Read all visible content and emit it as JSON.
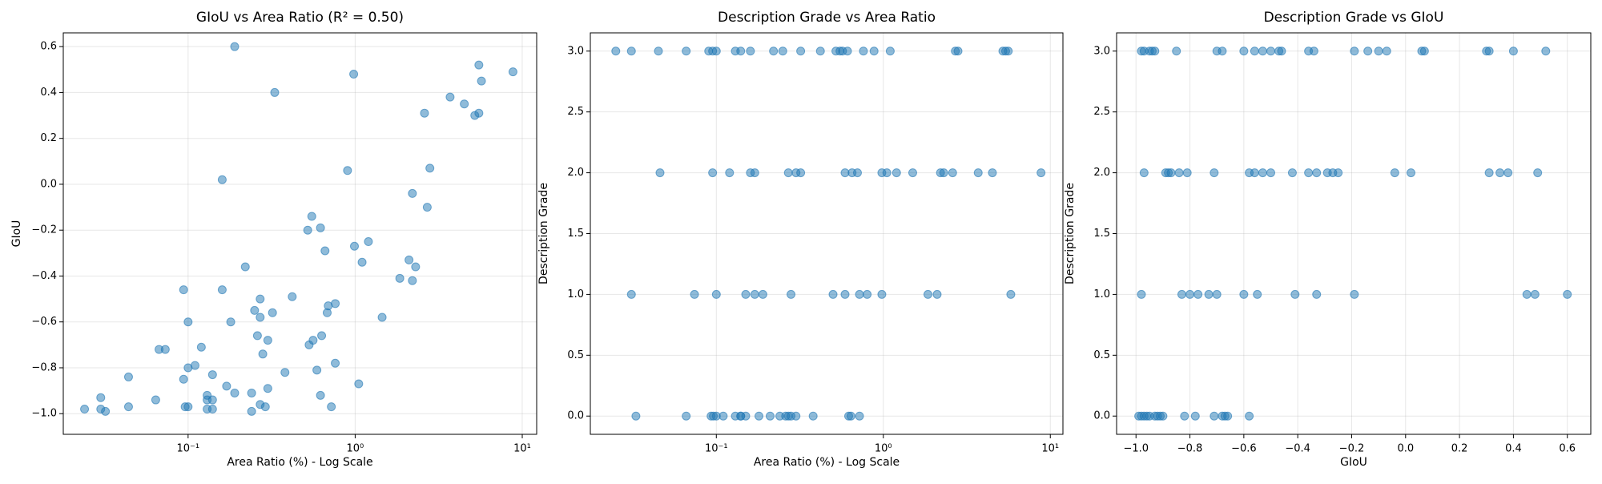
{
  "chart_data": [
    {
      "type": "scatter",
      "title": "GIoU vs Area Ratio (R² = 0.50)",
      "xlabel": "Area Ratio (%) - Log Scale",
      "ylabel": "GIoU",
      "xscale": "log",
      "grid": true,
      "color": "#1f77b4",
      "xlim": [
        0.0179,
        12.2
      ],
      "ylim": [
        -1.09,
        0.66
      ],
      "xticks": [
        {
          "value": 0.1,
          "label": "10⁻¹"
        },
        {
          "value": 1,
          "label": "10⁰"
        },
        {
          "value": 10,
          "label": "10¹"
        }
      ],
      "yticks": [
        {
          "value": -1.0,
          "label": "−1.0"
        },
        {
          "value": -0.8,
          "label": "−0.8"
        },
        {
          "value": -0.6,
          "label": "−0.6"
        },
        {
          "value": -0.4,
          "label": "−0.4"
        },
        {
          "value": -0.2,
          "label": "−0.2"
        },
        {
          "value": 0,
          "label": "0.0"
        },
        0.2,
        0.4,
        0.6
      ],
      "x": [
        0.19,
        0.33,
        0.98,
        5.5,
        5.7,
        8.8,
        3.7,
        4.5,
        5.2,
        5.5,
        2.6,
        0.9,
        2.8,
        0.16,
        2.2,
        2.7,
        0.55,
        0.52,
        0.62,
        1.2,
        0.99,
        0.66,
        2.1,
        1.1,
        2.3,
        0.22,
        1.85,
        2.2,
        0.094,
        0.16,
        0.42,
        0.27,
        0.76,
        0.69,
        0.25,
        0.68,
        0.32,
        0.27,
        1.45,
        0.1,
        0.18,
        0.63,
        0.26,
        0.3,
        0.56,
        0.53,
        0.12,
        0.067,
        0.073,
        0.28,
        0.11,
        0.1,
        0.76,
        0.38,
        0.59,
        0.14,
        0.044,
        0.094,
        0.17,
        1.05,
        0.3,
        0.19,
        0.24,
        0.13,
        0.62,
        0.03,
        0.064,
        0.13,
        0.14,
        0.096,
        0.1,
        0.044,
        0.27,
        0.29,
        0.72,
        0.024,
        0.03,
        0.032,
        0.13,
        0.14,
        0.24
      ],
      "y": [
        0.6,
        0.4,
        0.48,
        0.52,
        0.45,
        0.49,
        0.38,
        0.35,
        0.3,
        0.31,
        0.31,
        0.06,
        0.07,
        0.02,
        -0.04,
        -0.1,
        -0.14,
        -0.2,
        -0.19,
        -0.25,
        -0.27,
        -0.29,
        -0.33,
        -0.34,
        -0.36,
        -0.36,
        -0.41,
        -0.42,
        -0.46,
        -0.46,
        -0.49,
        -0.5,
        -0.52,
        -0.53,
        -0.55,
        -0.56,
        -0.56,
        -0.58,
        -0.58,
        -0.6,
        -0.6,
        -0.66,
        -0.66,
        -0.68,
        -0.68,
        -0.7,
        -0.71,
        -0.72,
        -0.72,
        -0.74,
        -0.79,
        -0.8,
        -0.78,
        -0.82,
        -0.81,
        -0.83,
        -0.84,
        -0.85,
        -0.88,
        -0.87,
        -0.89,
        -0.91,
        -0.91,
        -0.92,
        -0.92,
        -0.93,
        -0.94,
        -0.94,
        -0.94,
        -0.97,
        -0.97,
        -0.97,
        -0.96,
        -0.97,
        -0.97,
        -0.98,
        -0.98,
        -0.99,
        -0.98,
        -0.98,
        -0.99
      ]
    },
    {
      "type": "scatter",
      "title": "Description Grade vs Area Ratio",
      "xlabel": "Area Ratio (%) - Log Scale",
      "ylabel": "Description Grade",
      "xscale": "log",
      "grid": true,
      "color": "#1f77b4",
      "xlim": [
        0.0176,
        11.9
      ],
      "ylim": [
        -0.15,
        3.15
      ],
      "xticks": [
        {
          "value": 0.1,
          "label": "10⁻¹"
        },
        {
          "value": 1,
          "label": "10⁰"
        },
        {
          "value": 10,
          "label": "10¹"
        }
      ],
      "yticks": [
        {
          "value": 0,
          "label": "0.0"
        },
        0.5,
        {
          "value": 1,
          "label": "1.0"
        },
        1.5,
        {
          "value": 2,
          "label": "2.0"
        },
        2.5,
        {
          "value": 3,
          "label": "3.0"
        }
      ],
      "x": [
        0.025,
        0.031,
        0.045,
        0.066,
        0.09,
        0.095,
        0.1,
        0.13,
        0.14,
        0.16,
        0.22,
        0.25,
        0.32,
        0.42,
        0.52,
        0.55,
        0.57,
        0.61,
        0.76,
        0.88,
        1.1,
        2.7,
        2.8,
        5.2,
        5.4,
        5.6,
        0.046,
        0.095,
        0.12,
        0.16,
        0.17,
        0.27,
        0.3,
        0.32,
        0.59,
        0.65,
        0.7,
        0.98,
        1.05,
        1.2,
        1.5,
        2.2,
        2.3,
        2.6,
        3.7,
        4.5,
        8.8,
        0.031,
        0.074,
        0.1,
        0.15,
        0.17,
        0.19,
        0.28,
        0.5,
        0.59,
        0.72,
        0.8,
        0.98,
        1.85,
        2.1,
        5.8,
        0.033,
        0.066,
        0.093,
        0.096,
        0.1,
        0.11,
        0.13,
        0.14,
        0.14,
        0.15,
        0.18,
        0.21,
        0.24,
        0.26,
        0.27,
        0.28,
        0.3,
        0.38,
        0.62,
        0.64,
        0.72
      ],
      "y": [
        3,
        3,
        3,
        3,
        3,
        3,
        3,
        3,
        3,
        3,
        3,
        3,
        3,
        3,
        3,
        3,
        3,
        3,
        3,
        3,
        3,
        3,
        3,
        3,
        3,
        3,
        2,
        2,
        2,
        2,
        2,
        2,
        2,
        2,
        2,
        2,
        2,
        2,
        2,
        2,
        2,
        2,
        2,
        2,
        2,
        2,
        2,
        1,
        1,
        1,
        1,
        1,
        1,
        1,
        1,
        1,
        1,
        1,
        1,
        1,
        1,
        1,
        0,
        0,
        0,
        0,
        0,
        0,
        0,
        0,
        0,
        0,
        0,
        0,
        0,
        0,
        0,
        0,
        0,
        0,
        0,
        0,
        0
      ]
    },
    {
      "type": "scatter",
      "title": "Description Grade vs GIoU",
      "xlabel": "GIoU",
      "ylabel": "Description Grade",
      "xscale": "linear",
      "grid": true,
      "color": "#1f77b4",
      "xlim": [
        -1.072,
        0.687
      ],
      "ylim": [
        -0.15,
        3.15
      ],
      "xticks": [
        {
          "value": -1.0,
          "label": "−1.0"
        },
        {
          "value": -0.8,
          "label": "−0.8"
        },
        {
          "value": -0.6,
          "label": "−0.6"
        },
        {
          "value": -0.4,
          "label": "−0.4"
        },
        {
          "value": -0.2,
          "label": "−0.2"
        },
        {
          "value": 0,
          "label": "0.0"
        },
        0.2,
        0.4,
        0.6
      ],
      "yticks": [
        {
          "value": 0,
          "label": "0.0"
        },
        0.5,
        {
          "value": 1,
          "label": "1.0"
        },
        1.5,
        {
          "value": 2,
          "label": "2.0"
        },
        2.5,
        {
          "value": 3,
          "label": "3.0"
        }
      ],
      "x": [
        -0.98,
        -0.97,
        -0.95,
        -0.94,
        -0.93,
        -0.85,
        -0.7,
        -0.68,
        -0.6,
        -0.56,
        -0.53,
        -0.5,
        -0.47,
        -0.46,
        -0.36,
        -0.34,
        -0.19,
        -0.14,
        -0.1,
        -0.07,
        0.06,
        0.07,
        0.3,
        0.31,
        0.4,
        0.52,
        -0.97,
        -0.89,
        -0.88,
        -0.87,
        -0.84,
        -0.81,
        -0.71,
        -0.58,
        -0.56,
        -0.53,
        -0.5,
        -0.42,
        -0.36,
        -0.33,
        -0.29,
        -0.27,
        -0.25,
        -0.04,
        0.02,
        0.31,
        0.35,
        0.38,
        0.49,
        -0.98,
        -0.83,
        -0.8,
        -0.77,
        -0.73,
        -0.7,
        -0.6,
        -0.55,
        -0.41,
        -0.33,
        -0.19,
        0.45,
        0.48,
        0.6,
        -0.99,
        -0.98,
        -0.97,
        -0.96,
        -0.95,
        -0.93,
        -0.92,
        -0.91,
        -0.9,
        -0.82,
        -0.78,
        -0.71,
        -0.68,
        -0.67,
        -0.66,
        -0.58
      ],
      "y": [
        3,
        3,
        3,
        3,
        3,
        3,
        3,
        3,
        3,
        3,
        3,
        3,
        3,
        3,
        3,
        3,
        3,
        3,
        3,
        3,
        3,
        3,
        3,
        3,
        3,
        3,
        2,
        2,
        2,
        2,
        2,
        2,
        2,
        2,
        2,
        2,
        2,
        2,
        2,
        2,
        2,
        2,
        2,
        2,
        2,
        2,
        2,
        2,
        2,
        1,
        1,
        1,
        1,
        1,
        1,
        1,
        1,
        1,
        1,
        1,
        1,
        1,
        1,
        0,
        0,
        0,
        0,
        0,
        0,
        0,
        0,
        0,
        0,
        0,
        0,
        0,
        0,
        0,
        0
      ]
    }
  ]
}
